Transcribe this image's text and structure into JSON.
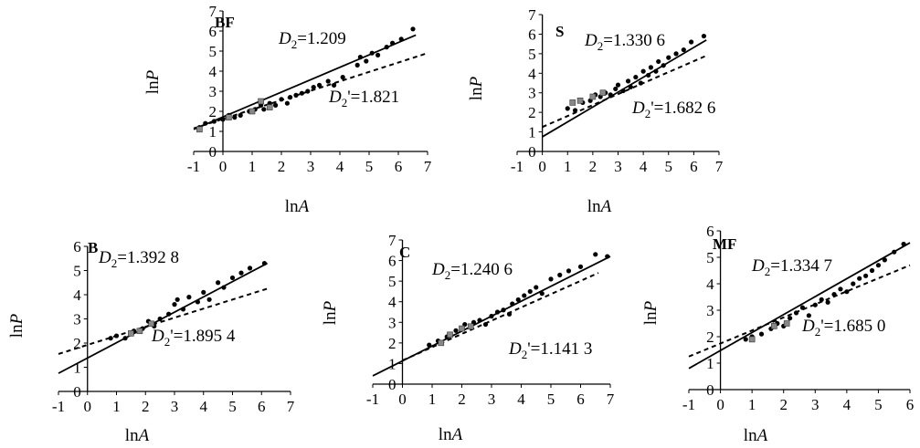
{
  "chart_data": [
    {
      "type": "scatter",
      "panel_label": "BF",
      "xlabel_prefix": "ln",
      "xlabel_var": "A",
      "ylabel_prefix": "ln",
      "ylabel_var": "P",
      "xlim": [
        -1,
        7
      ],
      "ylim": [
        0,
        7
      ],
      "xticks": [
        "-1",
        "0",
        "1",
        "2",
        "3",
        "4",
        "5",
        "6",
        "7"
      ],
      "yticks": [
        "0",
        "1",
        "2",
        "3",
        "4",
        "5",
        "6",
        "7"
      ],
      "solid_fit": {
        "name_main": "D",
        "name_sub": "2",
        "value": "=1.209",
        "x": [
          -1,
          6.6
        ],
        "y": [
          1.1,
          5.8
        ]
      },
      "dashed_fit": {
        "name_main": "D",
        "name_sub": "2",
        "value": "=1.821",
        "x": [
          -1,
          7
        ],
        "y": [
          1.15,
          4.9
        ]
      },
      "points": [
        [
          -0.8,
          1.2
        ],
        [
          -0.6,
          1.4
        ],
        [
          -0.3,
          1.5
        ],
        [
          0,
          1.6
        ],
        [
          0.2,
          1.8
        ],
        [
          0.4,
          1.7
        ],
        [
          0.6,
          1.8
        ],
        [
          0.9,
          2.0
        ],
        [
          1.1,
          2.1
        ],
        [
          1.3,
          2.3
        ],
        [
          1.4,
          2.1
        ],
        [
          1.6,
          2.4
        ],
        [
          1.8,
          2.3
        ],
        [
          2.0,
          2.6
        ],
        [
          2.2,
          2.4
        ],
        [
          2.3,
          2.7
        ],
        [
          2.5,
          2.8
        ],
        [
          2.7,
          2.9
        ],
        [
          2.9,
          3.0
        ],
        [
          3.1,
          3.2
        ],
        [
          3.3,
          3.3
        ],
        [
          3.6,
          3.5
        ],
        [
          3.8,
          3.3
        ],
        [
          4.1,
          3.7
        ],
        [
          4.6,
          4.3
        ],
        [
          4.7,
          4.7
        ],
        [
          4.9,
          4.5
        ],
        [
          5.1,
          4.9
        ],
        [
          5.3,
          4.8
        ],
        [
          5.6,
          5.2
        ],
        [
          5.8,
          5.4
        ],
        [
          6.1,
          5.6
        ],
        [
          6.5,
          6.1
        ]
      ],
      "squares": [
        [
          -0.8,
          1.1
        ],
        [
          0.2,
          1.7
        ],
        [
          1.0,
          2.0
        ],
        [
          1.3,
          2.5
        ],
        [
          1.6,
          2.2
        ]
      ]
    },
    {
      "type": "scatter",
      "panel_label": "S",
      "xlabel_prefix": "ln",
      "xlabel_var": "A",
      "ylabel_prefix": "ln",
      "ylabel_var": "P",
      "xlim": [
        -1,
        7
      ],
      "ylim": [
        0,
        7
      ],
      "xticks": [
        "-1",
        "0",
        "1",
        "2",
        "3",
        "4",
        "5",
        "6",
        "7"
      ],
      "yticks": [
        "0",
        "1",
        "2",
        "3",
        "4",
        "5",
        "6",
        "7"
      ],
      "solid_fit": {
        "name_main": "D",
        "name_sub": "2",
        "value": "=1.330 6",
        "x": [
          0,
          6.5
        ],
        "y": [
          0.75,
          5.7
        ]
      },
      "dashed_fit": {
        "name_main": "D",
        "name_sub": "2",
        "value": "=1.682 6",
        "x": [
          0,
          6.5
        ],
        "y": [
          1.25,
          4.9
        ]
      },
      "points": [
        [
          1.0,
          2.2
        ],
        [
          1.3,
          2.1
        ],
        [
          1.6,
          2.5
        ],
        [
          1.9,
          2.6
        ],
        [
          2.1,
          2.9
        ],
        [
          2.3,
          2.8
        ],
        [
          2.5,
          3.0
        ],
        [
          2.7,
          2.9
        ],
        [
          2.9,
          3.2
        ],
        [
          3.0,
          3.4
        ],
        [
          3.2,
          3.1
        ],
        [
          3.4,
          3.6
        ],
        [
          3.5,
          3.3
        ],
        [
          3.7,
          3.8
        ],
        [
          3.9,
          3.5
        ],
        [
          4.0,
          4.1
        ],
        [
          4.2,
          3.9
        ],
        [
          4.3,
          4.3
        ],
        [
          4.5,
          4.1
        ],
        [
          4.6,
          4.6
        ],
        [
          4.8,
          4.4
        ],
        [
          5.0,
          4.8
        ],
        [
          5.3,
          5.0
        ],
        [
          5.6,
          5.2
        ],
        [
          5.9,
          5.6
        ],
        [
          6.4,
          5.9
        ]
      ],
      "squares": [
        [
          1.2,
          2.5
        ],
        [
          1.5,
          2.6
        ],
        [
          2.0,
          2.8
        ],
        [
          2.4,
          3.0
        ]
      ]
    },
    {
      "type": "scatter",
      "panel_label": "B",
      "xlabel_prefix": "ln",
      "xlabel_var": "A",
      "ylabel_prefix": "ln",
      "ylabel_var": "P",
      "xlim": [
        -1,
        7
      ],
      "ylim": [
        0,
        6
      ],
      "xticks": [
        "-1",
        "0",
        "1",
        "2",
        "3",
        "4",
        "5",
        "6",
        "7"
      ],
      "yticks": [
        "0",
        "1",
        "2",
        "3",
        "4",
        "5",
        "6"
      ],
      "solid_fit": {
        "name_main": "D",
        "name_sub": "2",
        "value": "=1.392 8",
        "x": [
          -1,
          6.2
        ],
        "y": [
          0.75,
          5.3
        ]
      },
      "dashed_fit": {
        "name_main": "D",
        "name_sub": "2",
        "value": "=1.895 4",
        "x": [
          -1,
          6.2
        ],
        "y": [
          1.55,
          4.25
        ]
      },
      "points": [
        [
          0.8,
          2.2
        ],
        [
          1.0,
          2.3
        ],
        [
          1.3,
          2.2
        ],
        [
          1.6,
          2.5
        ],
        [
          1.9,
          2.6
        ],
        [
          2.1,
          2.9
        ],
        [
          2.3,
          2.7
        ],
        [
          2.5,
          3.0
        ],
        [
          2.8,
          3.2
        ],
        [
          3.0,
          3.6
        ],
        [
          3.1,
          3.8
        ],
        [
          3.3,
          3.4
        ],
        [
          3.5,
          3.9
        ],
        [
          3.8,
          3.7
        ],
        [
          4.0,
          4.1
        ],
        [
          4.2,
          3.8
        ],
        [
          4.5,
          4.5
        ],
        [
          4.7,
          4.3
        ],
        [
          5.0,
          4.7
        ],
        [
          5.3,
          4.9
        ],
        [
          5.6,
          5.1
        ],
        [
          6.1,
          5.3
        ]
      ],
      "squares": [
        [
          1.5,
          2.4
        ],
        [
          1.8,
          2.5
        ],
        [
          2.2,
          2.8
        ]
      ]
    },
    {
      "type": "scatter",
      "panel_label": "C",
      "xlabel_prefix": "ln",
      "xlabel_var": "A",
      "ylabel_prefix": "ln",
      "ylabel_var": "P",
      "xlim": [
        -1,
        7
      ],
      "ylim": [
        0,
        7
      ],
      "xticks": [
        "-1",
        "0",
        "1",
        "2",
        "3",
        "4",
        "5",
        "6",
        "7"
      ],
      "yticks": [
        "0",
        "1",
        "2",
        "3",
        "4",
        "5",
        "6",
        "7"
      ],
      "solid_fit": {
        "name_main": "D",
        "name_sub": "2",
        "value": "=1.240 6",
        "x": [
          -1,
          7
        ],
        "y": [
          0.4,
          6.2
        ]
      },
      "dashed_fit": {
        "name_main": "D",
        "name_sub": "2",
        "value": "=1.141 3",
        "x": [
          0,
          6.6
        ],
        "y": [
          1.15,
          5.4
        ]
      },
      "points": [
        [
          0.9,
          1.9
        ],
        [
          1.2,
          2.1
        ],
        [
          1.5,
          2.3
        ],
        [
          1.8,
          2.6
        ],
        [
          2.1,
          2.9
        ],
        [
          2.4,
          3.0
        ],
        [
          2.6,
          3.1
        ],
        [
          2.8,
          2.9
        ],
        [
          3.0,
          3.3
        ],
        [
          3.2,
          3.5
        ],
        [
          3.4,
          3.6
        ],
        [
          3.6,
          3.4
        ],
        [
          3.7,
          3.9
        ],
        [
          3.9,
          4.1
        ],
        [
          4.1,
          4.3
        ],
        [
          4.3,
          4.5
        ],
        [
          4.5,
          4.7
        ],
        [
          4.7,
          4.4
        ],
        [
          5.0,
          5.1
        ],
        [
          5.3,
          5.3
        ],
        [
          5.6,
          5.5
        ],
        [
          6.0,
          5.7
        ],
        [
          6.5,
          6.3
        ],
        [
          6.9,
          6.2
        ]
      ],
      "squares": [
        [
          1.3,
          2.0
        ],
        [
          1.6,
          2.4
        ],
        [
          2.0,
          2.7
        ],
        [
          2.3,
          2.8
        ]
      ]
    },
    {
      "type": "scatter",
      "panel_label": "MF",
      "xlabel_prefix": "ln",
      "xlabel_var": "A",
      "ylabel_prefix": "ln",
      "ylabel_var": "P",
      "xlim": [
        -1,
        6
      ],
      "ylim": [
        0,
        6
      ],
      "xticks": [
        "-1",
        "0",
        "1",
        "2",
        "3",
        "4",
        "5",
        "6"
      ],
      "yticks": [
        "0",
        "1",
        "2",
        "3",
        "4",
        "5",
        "6"
      ],
      "solid_fit": {
        "name_main": "D",
        "name_sub": "2",
        "value": "=1.334 7",
        "x": [
          -1,
          6
        ],
        "y": [
          0.8,
          5.55
        ]
      },
      "dashed_fit": {
        "name_main": "D",
        "name_sub": "2",
        "value": "=1.685 0",
        "x": [
          -1,
          6
        ],
        "y": [
          1.25,
          4.7
        ]
      },
      "points": [
        [
          0.8,
          1.9
        ],
        [
          1.0,
          2.0
        ],
        [
          1.3,
          2.1
        ],
        [
          1.6,
          2.3
        ],
        [
          1.8,
          2.5
        ],
        [
          2.0,
          2.4
        ],
        [
          2.2,
          2.7
        ],
        [
          2.4,
          2.9
        ],
        [
          2.6,
          3.1
        ],
        [
          2.8,
          2.8
        ],
        [
          3.0,
          3.2
        ],
        [
          3.2,
          3.4
        ],
        [
          3.4,
          3.3
        ],
        [
          3.6,
          3.6
        ],
        [
          3.8,
          3.8
        ],
        [
          4.0,
          3.7
        ],
        [
          4.2,
          4.0
        ],
        [
          4.4,
          4.2
        ],
        [
          4.6,
          4.3
        ],
        [
          4.8,
          4.5
        ],
        [
          5.0,
          4.7
        ],
        [
          5.2,
          4.9
        ],
        [
          5.5,
          5.2
        ],
        [
          5.8,
          5.5
        ]
      ],
      "squares": [
        [
          1.0,
          1.9
        ],
        [
          1.7,
          2.4
        ],
        [
          2.1,
          2.5
        ]
      ]
    }
  ]
}
